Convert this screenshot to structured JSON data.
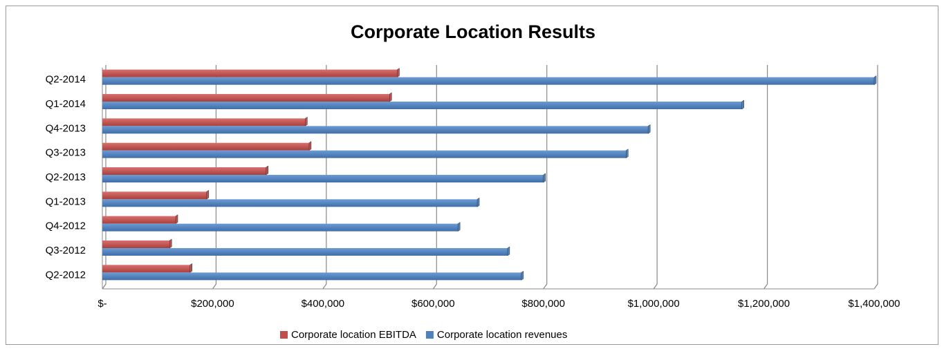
{
  "chart_data": {
    "type": "bar",
    "orientation": "horizontal",
    "title": "Corporate Location Results",
    "categories": [
      "Q2-2012",
      "Q3-2012",
      "Q4-2012",
      "Q1-2013",
      "Q2-2013",
      "Q3-2013",
      "Q4-2013",
      "Q1-2014",
      "Q2-2014"
    ],
    "series": [
      {
        "name": "Corporate location EBITDA",
        "color": "#c0504d",
        "values": [
          159000,
          122000,
          133000,
          189000,
          297000,
          375000,
          368000,
          521000,
          535000
        ]
      },
      {
        "name": "Corporate location revenues",
        "color": "#4f81bd",
        "values": [
          760000,
          735000,
          645000,
          680000,
          800000,
          950000,
          990000,
          1160000,
          1400000
        ]
      }
    ],
    "xlim": [
      0,
      1400000
    ],
    "xticks": [
      {
        "value": 0,
        "label": "$-"
      },
      {
        "value": 200000,
        "label": "$200,000"
      },
      {
        "value": 400000,
        "label": "$400,000"
      },
      {
        "value": 600000,
        "label": "$600,000"
      },
      {
        "value": 800000,
        "label": "$800,000"
      },
      {
        "value": 1000000,
        "label": "$1,000,000"
      },
      {
        "value": 1200000,
        "label": "$1,200,000"
      },
      {
        "value": 1400000,
        "label": "$1,400,000"
      }
    ],
    "grid": true,
    "legend": "bottom"
  }
}
